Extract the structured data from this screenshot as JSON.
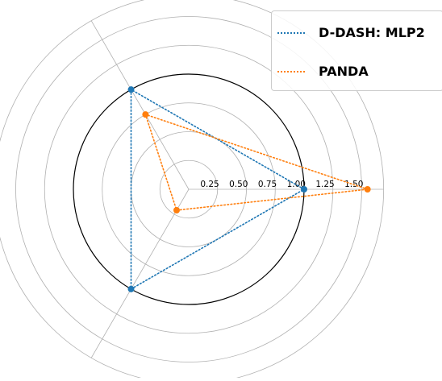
{
  "chart_data": {
    "type": "radar",
    "title": "",
    "axes_count": 3,
    "radial_ticks": [
      0.25,
      0.5,
      0.75,
      1.0,
      1.25,
      1.5
    ],
    "radial_tick_labels": [
      "0.25",
      "0.50",
      "0.75",
      "1.00",
      "1.25",
      "1.50"
    ],
    "rlim": [
      0,
      1.5
    ],
    "reference_circle": 1.0,
    "grid": true,
    "legend_position": "top-right",
    "series": [
      {
        "name": "D-DASH: MLP2",
        "values": [
          1.0,
          1.0,
          1.0
        ],
        "color": "#1f77b4",
        "line_style": "dotted"
      },
      {
        "name": "PANDA",
        "values": [
          1.55,
          0.75,
          0.21
        ],
        "color": "#ff7f0e",
        "line_style": "dotted"
      }
    ]
  }
}
